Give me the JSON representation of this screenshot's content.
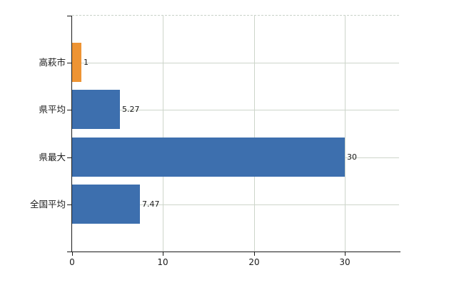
{
  "chart_data": {
    "type": "bar",
    "orientation": "horizontal",
    "title": "",
    "xlabel": "",
    "ylabel": "",
    "categories": [
      "高萩市",
      "県平均",
      "県最大",
      "全国平均"
    ],
    "values": [
      1,
      5.27,
      30,
      7.47
    ],
    "value_labels": [
      "1",
      "5.27",
      "30",
      "7.47"
    ],
    "bar_colors": [
      "#ee9434",
      "#3d6fae",
      "#3d6fae",
      "#3d6fae"
    ],
    "x_ticks": [
      0,
      10,
      20,
      30
    ],
    "x_tick_labels": [
      "0",
      "10",
      "20",
      "30"
    ],
    "xlim": [
      0,
      36
    ],
    "grid": true,
    "legend": false
  },
  "colors": {
    "bar_blue": "#3d6fae",
    "bar_orange": "#ee9434",
    "gridline": "#cdd5ca",
    "top_dashed_line": "#c9d2c9",
    "axis": "#1a1a1a",
    "text": "#1a1a1a",
    "background": "#ffffff"
  }
}
